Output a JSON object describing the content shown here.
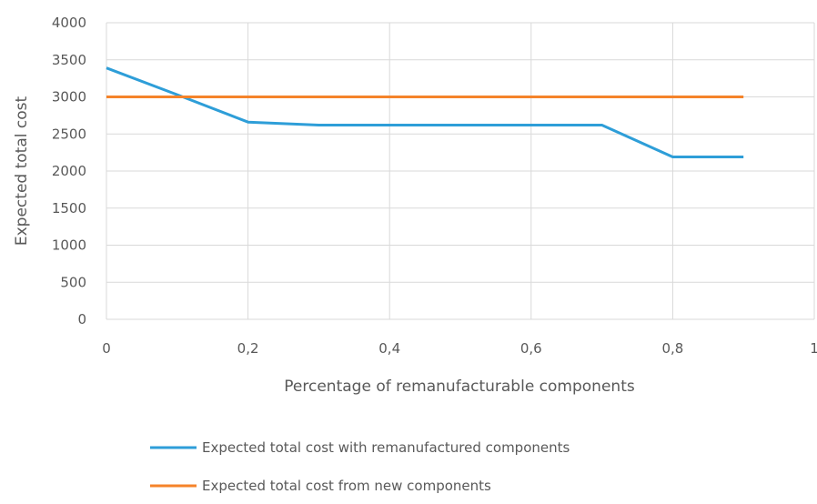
{
  "chart_data": {
    "type": "line",
    "title": "",
    "xlabel": "Percentage of remanufacturable components",
    "ylabel": "Expected total cost",
    "xlim": [
      0,
      1
    ],
    "ylim": [
      0,
      4000
    ],
    "x_ticks": [
      0,
      0.2,
      0.4,
      0.6,
      0.8,
      1
    ],
    "x_tick_labels": [
      "0",
      "0,2",
      "0,4",
      "0,6",
      "0,8",
      "1"
    ],
    "y_ticks": [
      0,
      500,
      1000,
      1500,
      2000,
      2500,
      3000,
      3500,
      4000
    ],
    "y_tick_labels": [
      "0",
      "500",
      "1000",
      "1500",
      "2000",
      "2500",
      "3000",
      "3500",
      "4000"
    ],
    "grid": true,
    "legend_position": "bottom",
    "series": [
      {
        "name": "Expected total cost with remanufactured components",
        "color": "#2e9ed8",
        "x": [
          0,
          0.1,
          0.2,
          0.3,
          0.4,
          0.5,
          0.6,
          0.7,
          0.8,
          0.9
        ],
        "y": [
          3390,
          3030,
          2660,
          2620,
          2620,
          2620,
          2620,
          2620,
          2190,
          2190
        ]
      },
      {
        "name": "Expected total cost from new components",
        "color": "#f5832a",
        "x": [
          0,
          0.9
        ],
        "y": [
          3000,
          3000
        ]
      }
    ]
  }
}
